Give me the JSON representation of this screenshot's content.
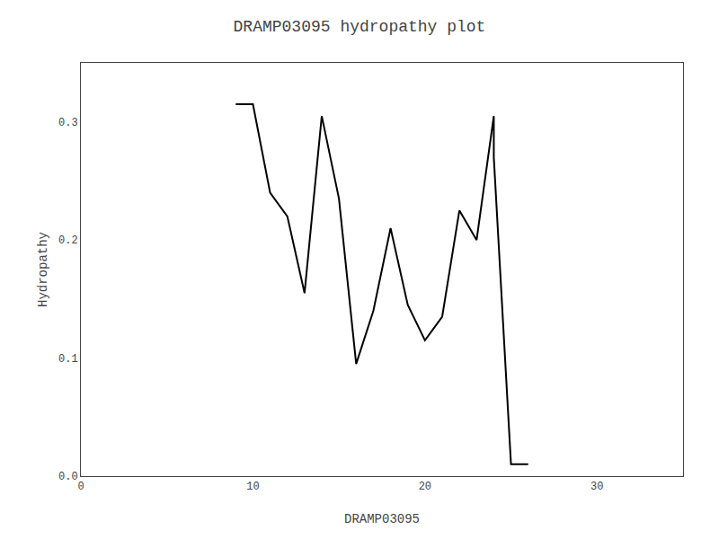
{
  "chart_data": {
    "type": "line",
    "title": "DRAMP03095 hydropathy plot",
    "xlabel": "DRAMP03095",
    "ylabel": "Hydropathy",
    "x": [
      9,
      10,
      11,
      12,
      13,
      13,
      14,
      15,
      16,
      17,
      18,
      19,
      19,
      20,
      21,
      22,
      22,
      23,
      24,
      24,
      25,
      25,
      26
    ],
    "values": [
      0.315,
      0.315,
      0.24,
      0.22,
      0.155,
      0.155,
      0.305,
      0.235,
      0.095,
      0.14,
      0.21,
      0.145,
      0.145,
      0.115,
      0.135,
      0.225,
      0.225,
      0.2,
      0.305,
      0.27,
      0.01,
      0.01,
      0.01
    ],
    "color": "black",
    "xlim": [
      0,
      35
    ],
    "xticks": [
      0,
      10,
      20,
      30
    ],
    "ylim": [
      0.0,
      0.35
    ],
    "yticks": [
      {
        "value": 0.0,
        "label": "0.0"
      },
      0.1,
      0.2,
      0.3
    ],
    "grid": false
  }
}
